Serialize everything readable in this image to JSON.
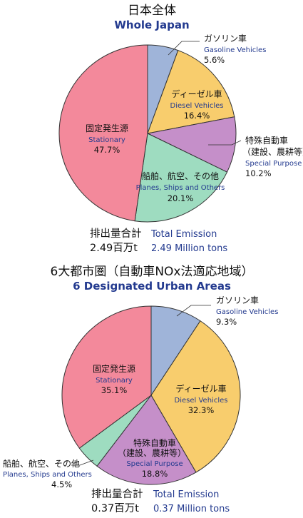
{
  "chart_data": [
    {
      "type": "pie",
      "title": "日本全体",
      "subtitle": "Whole Japan",
      "total_label_jp": "排出量合計",
      "total_label_en": "Total Emission",
      "total_value_jp": "2.49百万t",
      "total_value_en": "2.49 Million tons",
      "slices": [
        {
          "label_jp": "ガソリン車",
          "label_jp2": "",
          "label_en": "Gasoline Vehicles",
          "value": 5.6,
          "value_label": "5.6%",
          "color": "#9fb4d9"
        },
        {
          "label_jp": "ディーゼル車",
          "label_jp2": "",
          "label_en": "Diesel Vehicles",
          "value": 16.4,
          "value_label": "16.4%",
          "color": "#f8cd6d"
        },
        {
          "label_jp": "特殊自動車",
          "label_jp2": "（建設、農耕等）",
          "label_en": "Special Purpose",
          "value": 10.2,
          "value_label": "10.2%",
          "color": "#c58fc9"
        },
        {
          "label_jp": "船舶、航空、その他",
          "label_jp2": "",
          "label_en": "Planes, Ships and Others",
          "value": 20.1,
          "value_label": "20.1%",
          "color": "#9edcc0"
        },
        {
          "label_jp": "固定発生源",
          "label_jp2": "",
          "label_en": "Stationary",
          "value": 47.7,
          "value_label": "47.7%",
          "color": "#f3899b"
        }
      ]
    },
    {
      "type": "pie",
      "title": "6大都市圏（自動車NOx法適応地域）",
      "subtitle": "6 Designated Urban Areas",
      "total_label_jp": "排出量合計",
      "total_label_en": "Total Emission",
      "total_value_jp": "0.37百万t",
      "total_value_en": "0.37 Million tons",
      "slices": [
        {
          "label_jp": "ガソリン車",
          "label_jp2": "",
          "label_en": "Gasoline Vehicles",
          "value": 9.3,
          "value_label": "9.3%",
          "color": "#9fb4d9"
        },
        {
          "label_jp": "ディーゼル車",
          "label_jp2": "",
          "label_en": "Diesel Vehicles",
          "value": 32.3,
          "value_label": "32.3%",
          "color": "#f8cd6d"
        },
        {
          "label_jp": "特殊自動車",
          "label_jp2": "（建設、農耕等）",
          "label_en": "Special Purpose",
          "value": 18.8,
          "value_label": "18.8%",
          "color": "#c58fc9"
        },
        {
          "label_jp": "船舶、航空、その他",
          "label_jp2": "",
          "label_en": "Planes, Ships and Others",
          "value": 4.5,
          "value_label": "4.5%",
          "color": "#9edcc0"
        },
        {
          "label_jp": "固定発生源",
          "label_jp2": "",
          "label_en": "Stationary",
          "value": 35.1,
          "value_label": "35.1%",
          "color": "#f3899b"
        }
      ]
    }
  ]
}
